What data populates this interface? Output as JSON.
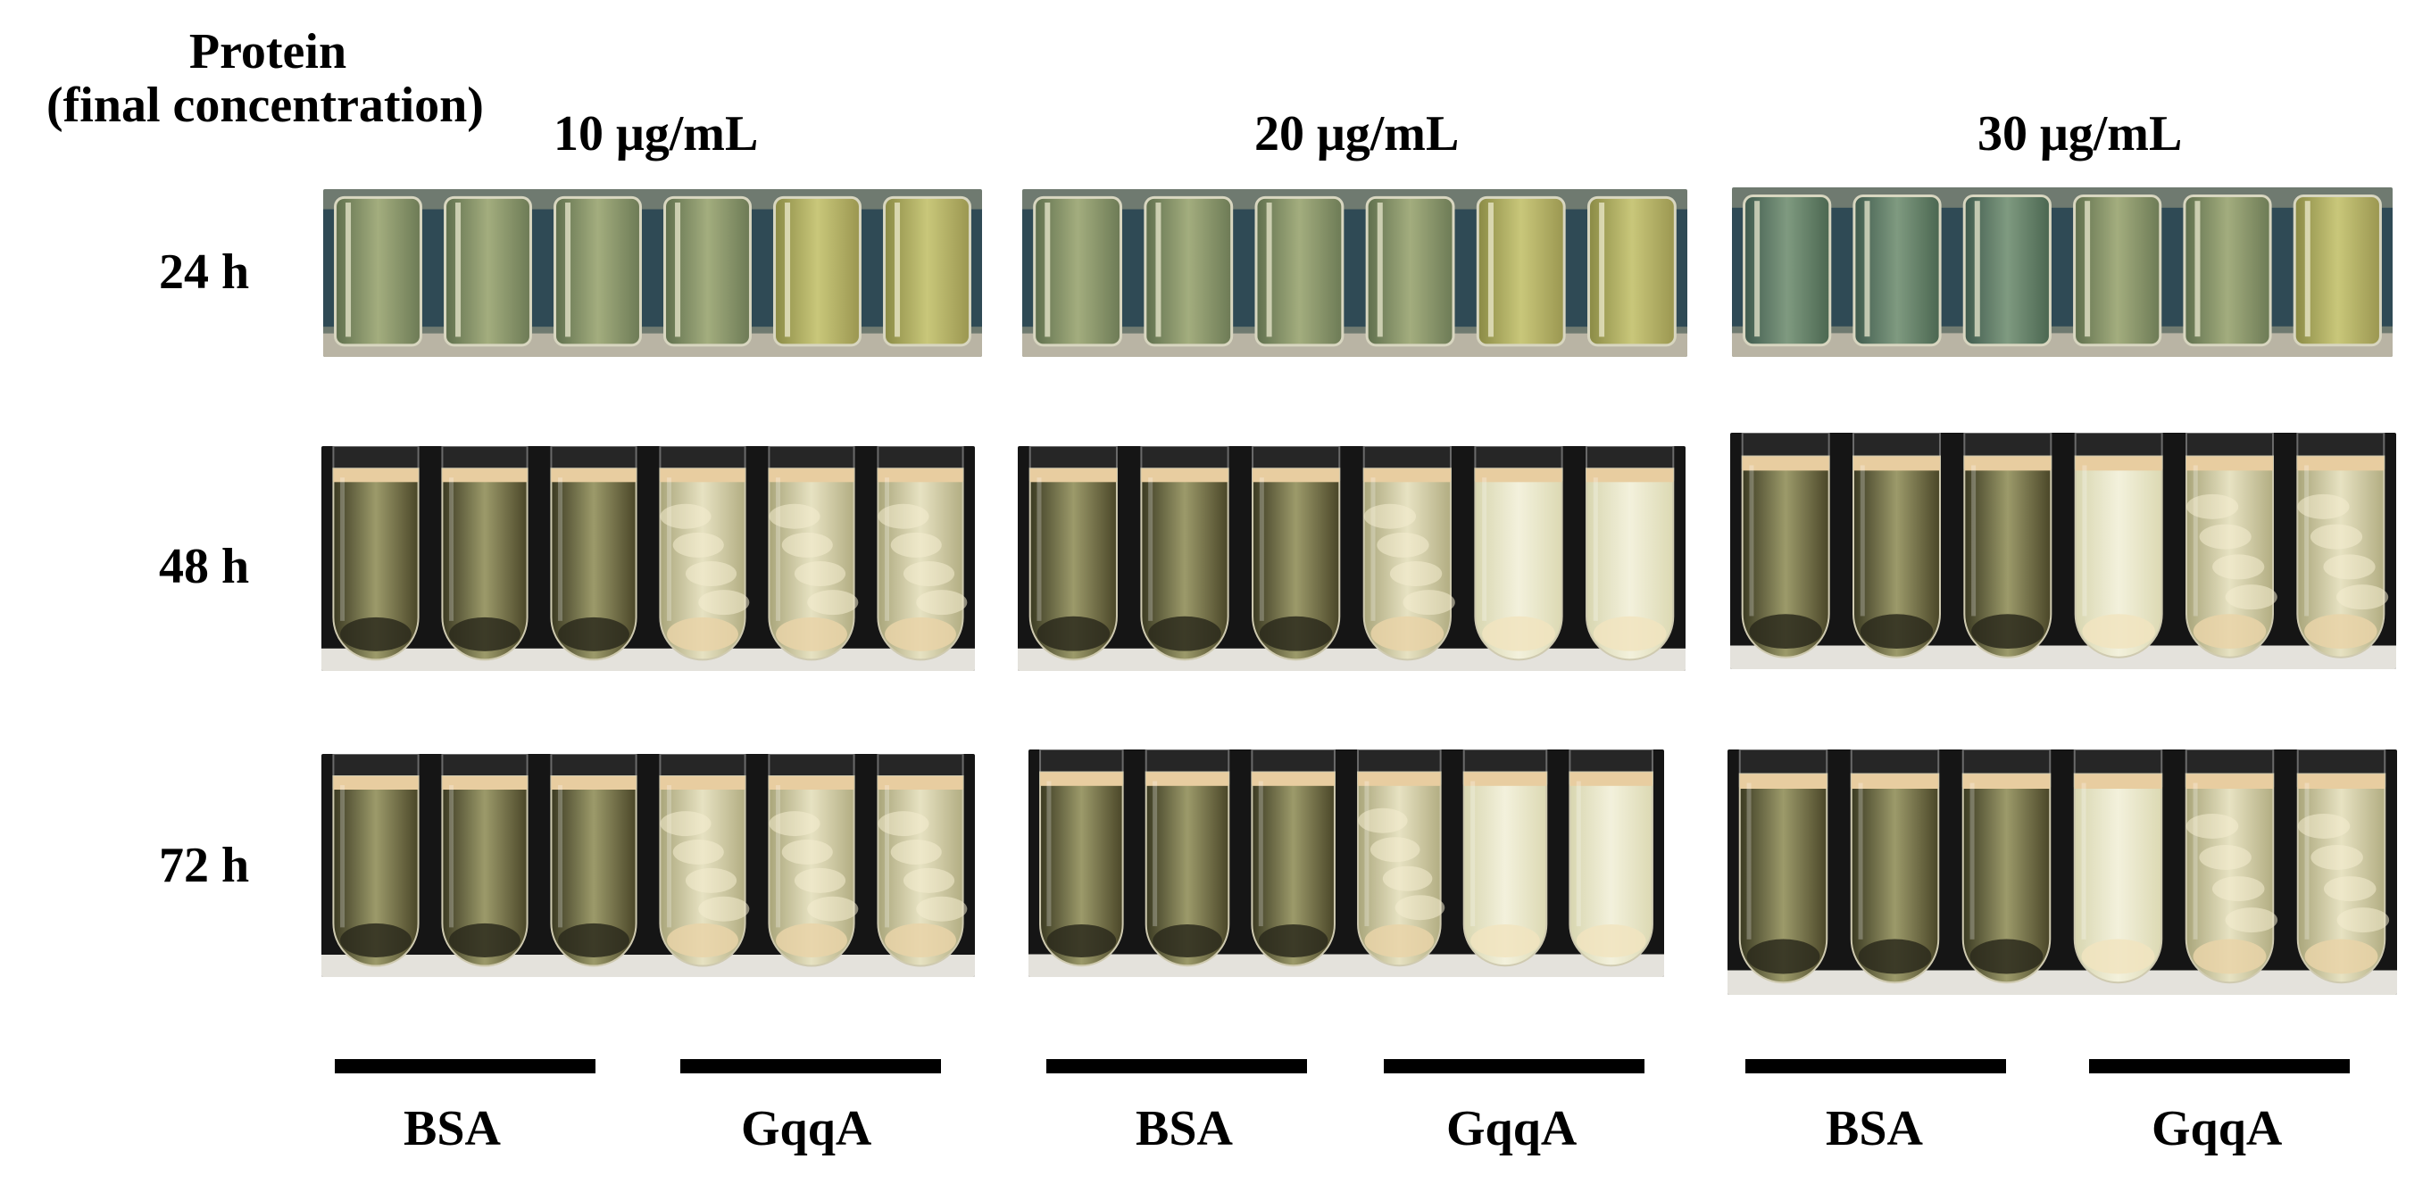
{
  "header": {
    "protein_label": "Protein",
    "concentration_label": "(final concentration)"
  },
  "concentrations": [
    "10 μg/mL",
    "20 μg/mL",
    "30 μg/mL"
  ],
  "timepoints": [
    "24 h",
    "48 h",
    "72 h"
  ],
  "groups": [
    "BSA",
    "GqqA",
    "BSA",
    "GqqA",
    "BSA",
    "GqqA"
  ],
  "photo_descriptions": [
    "culture-tubes-24h-10ug",
    "culture-tubes-24h-20ug",
    "culture-tubes-24h-30ug",
    "culture-tubes-48h-10ug",
    "culture-tubes-48h-20ug",
    "culture-tubes-48h-30ug",
    "culture-tubes-72h-10ug",
    "culture-tubes-72h-20ug",
    "culture-tubes-72h-30ug"
  ]
}
